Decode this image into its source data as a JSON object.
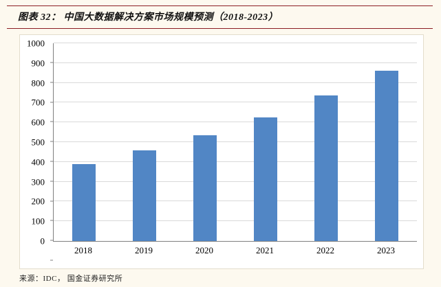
{
  "header": {
    "title": "图表 32： 中国大数据解决方案市场规模预测（2018-2023）"
  },
  "footer": {
    "source": "来源：IDC， 国金证券研究所"
  },
  "colors": {
    "accent_line": "#8b1c22",
    "bar": "#5186c5",
    "grid": "#d9d9d9",
    "background": "#fdf9ef"
  },
  "chart_data": {
    "type": "bar",
    "title": "中国大数据解决方案市场规模预测（2018-2023）",
    "categories": [
      "2018",
      "2019",
      "2020",
      "2021",
      "2022",
      "2023"
    ],
    "values": [
      390,
      458,
      535,
      625,
      735,
      862
    ],
    "xlabel": "",
    "ylabel": "",
    "ylim": [
      0,
      1000
    ],
    "ytick_step": 100,
    "grid": true,
    "legend": "none",
    "bar_color": "#5186c5"
  }
}
